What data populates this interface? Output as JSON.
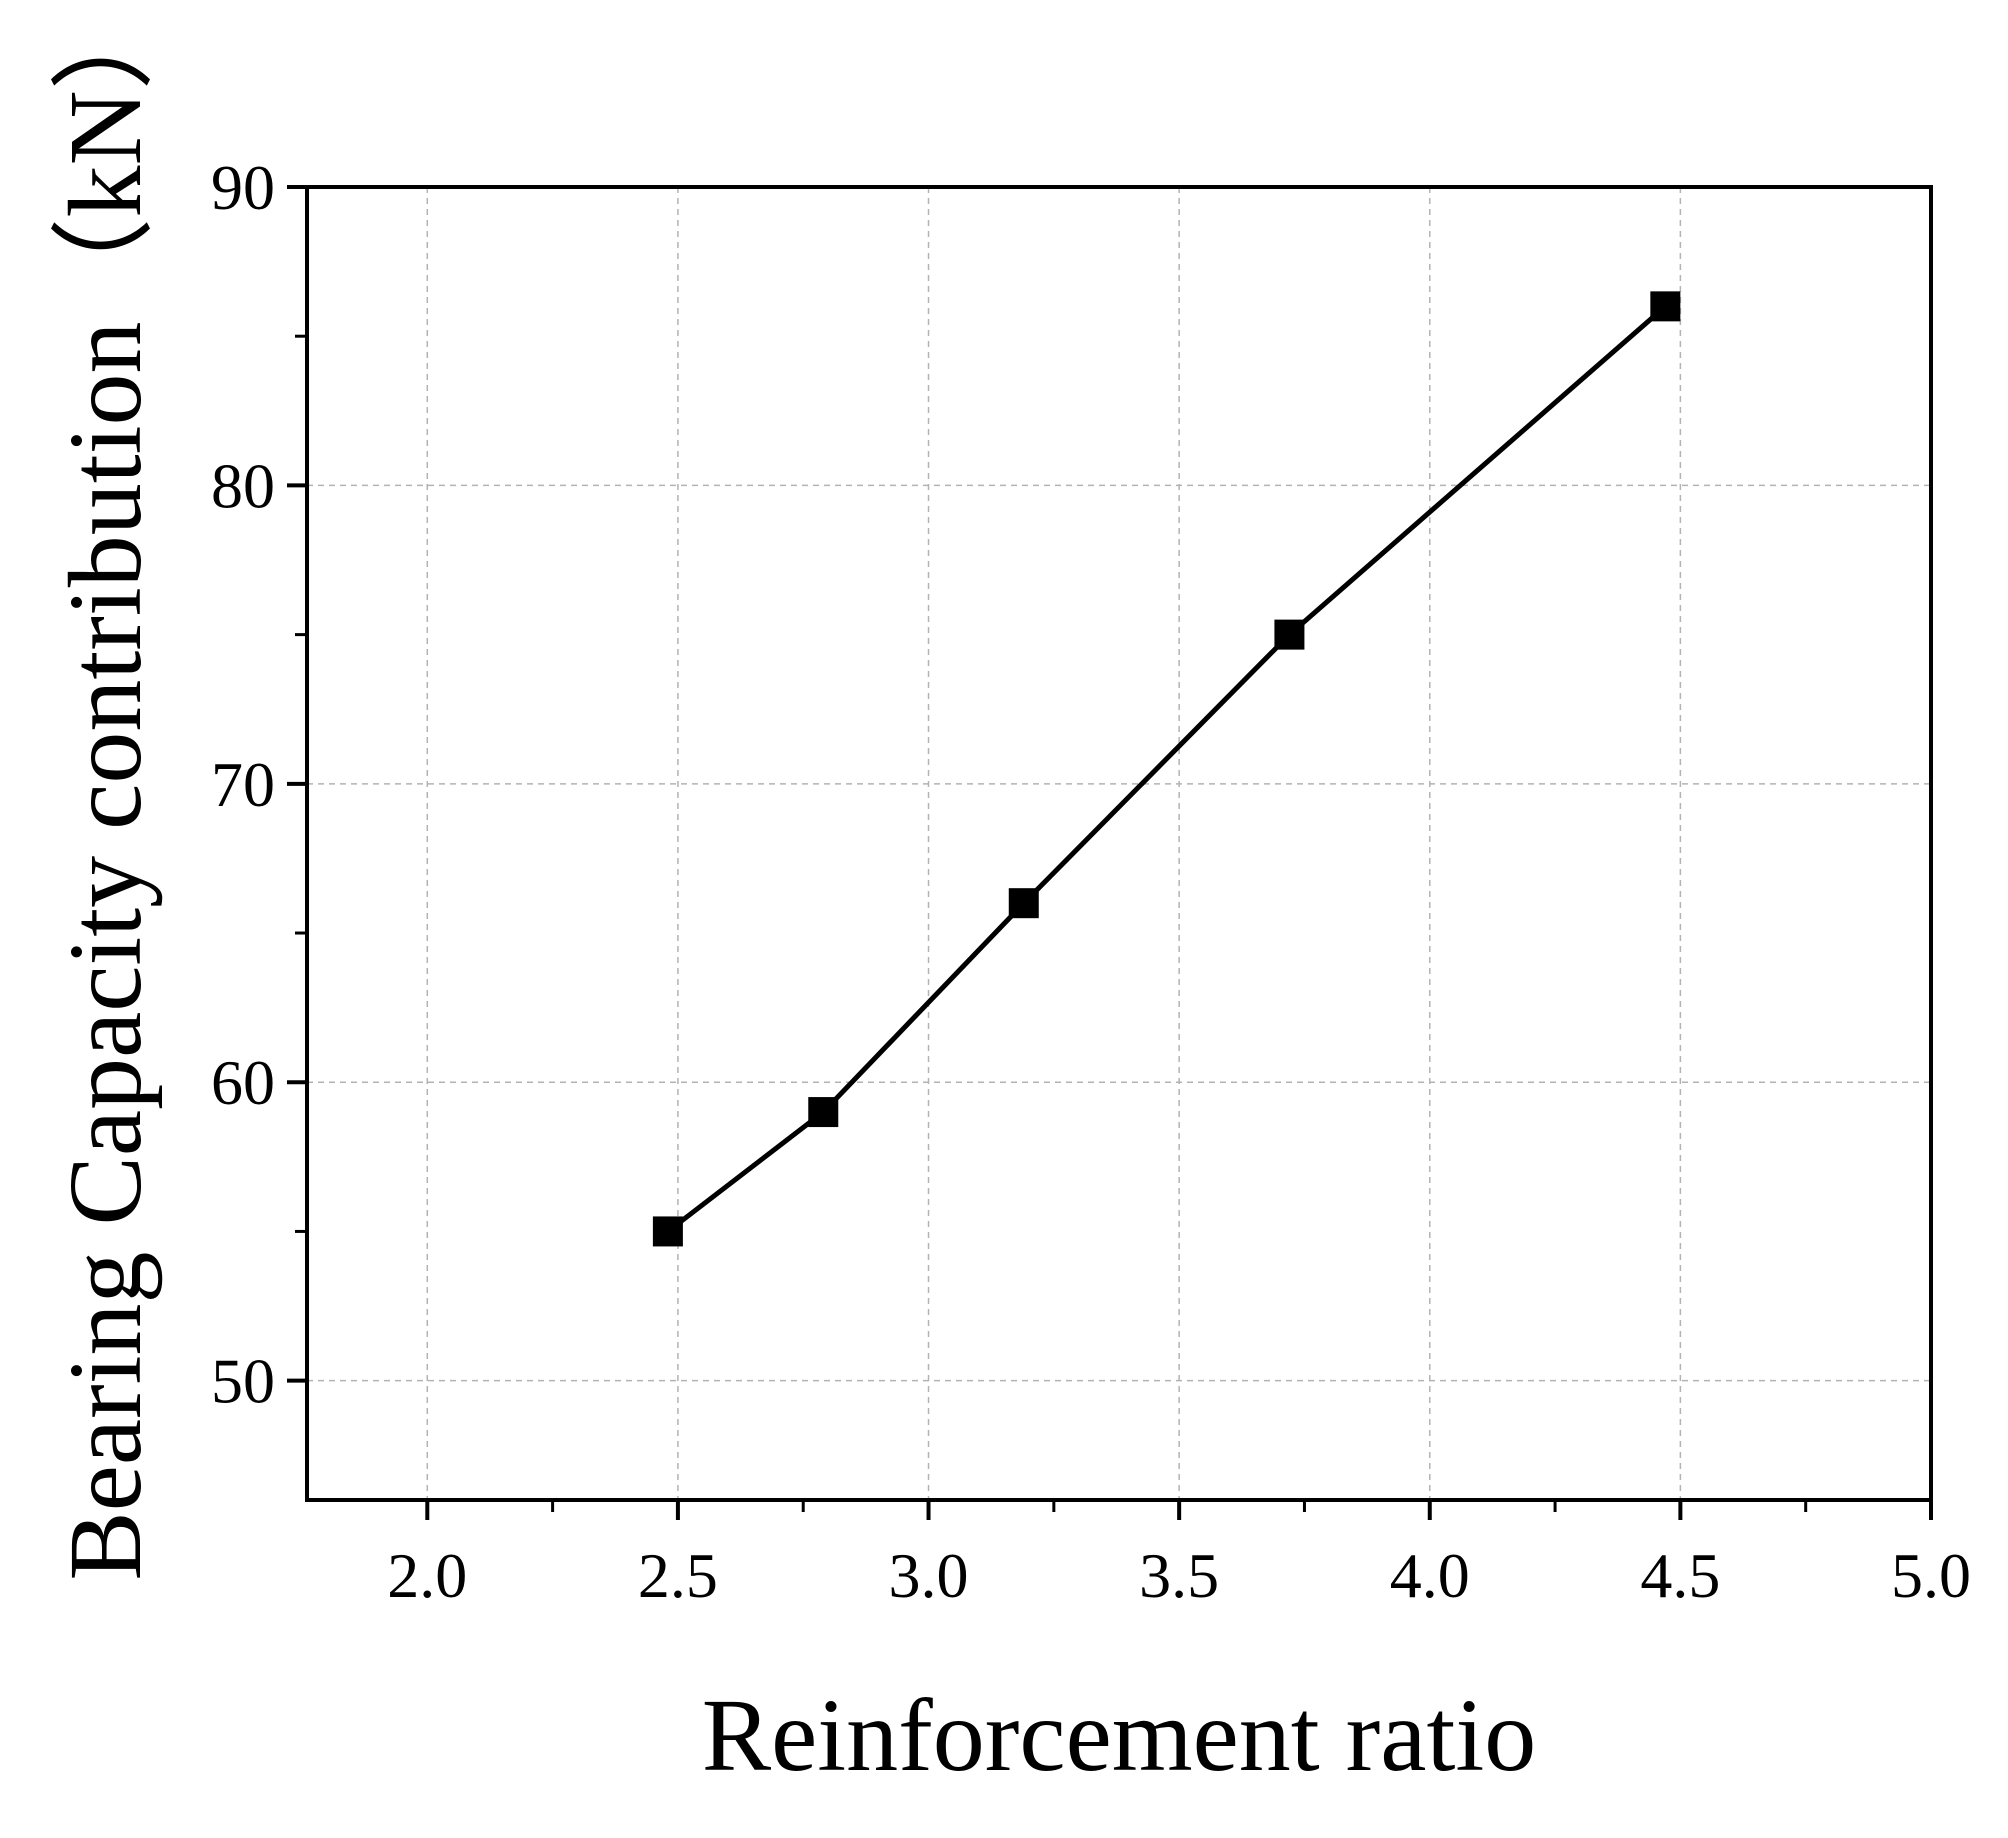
{
  "chart_data": {
    "type": "line",
    "title": "",
    "xlabel": "Reinforcement ratio",
    "ylabel": "Bearing Capacity contribution（kN）",
    "xlim": [
      1.76,
      5.0
    ],
    "ylim": [
      46,
      90
    ],
    "xticks": [
      2.0,
      2.5,
      3.0,
      3.5,
      4.0,
      4.5,
      5.0
    ],
    "xtick_labels": [
      "2.0",
      "2.5",
      "3.0",
      "3.5",
      "4.0",
      "4.5",
      "5.0"
    ],
    "yticks": [
      50,
      60,
      70,
      80,
      90
    ],
    "ytick_labels": [
      "50",
      "60",
      "70",
      "80",
      "90"
    ],
    "x_minor_ticks": [
      2.25,
      2.75,
      3.25,
      3.75,
      4.25,
      4.75
    ],
    "y_minor_ticks": [
      55,
      65,
      75,
      85
    ],
    "grid": true,
    "legend": "none",
    "series": [
      {
        "marker": "square",
        "color": "#000000",
        "x": [
          2.48,
          2.79,
          3.19,
          3.72,
          4.47
        ],
        "y": [
          55,
          59,
          66,
          75,
          86
        ]
      }
    ]
  }
}
